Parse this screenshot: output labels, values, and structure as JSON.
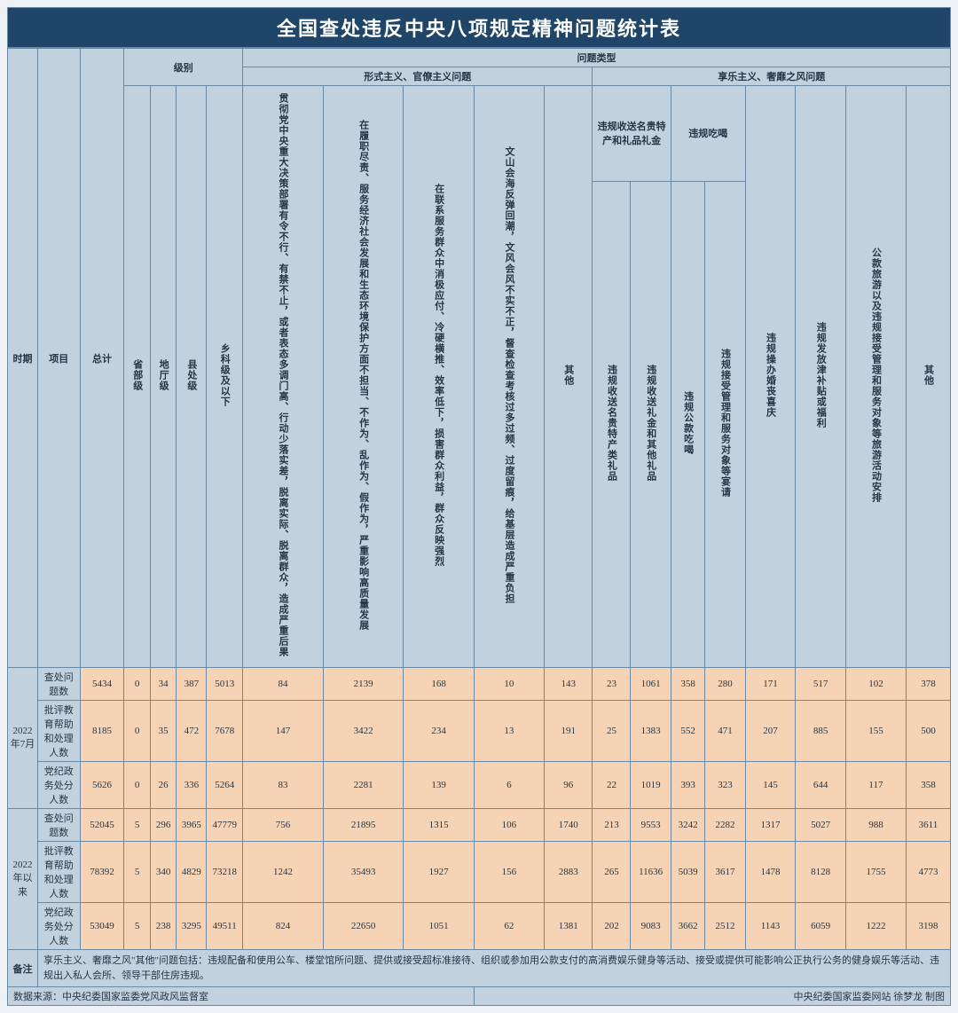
{
  "title": "全国查处违反中央八项规定精神问题统计表",
  "header": {
    "period": "时期",
    "item": "项目",
    "total": "总计",
    "level_group": "级别",
    "levels": [
      "省部级",
      "地厅级",
      "县处级",
      "乡科级及以下"
    ],
    "issue_group": "问题类型",
    "formalism_group": "形式主义、官僚主义问题",
    "hedonism_group": "享乐主义、奢靡之风问题",
    "formalism_cols": [
      "贯彻党中央重大决策部署有令不行、有禁不止，或者表态多调门高、行动少落实差，脱离实际、脱离群众，造成严重后果",
      "在履职尽责、服务经济社会发展和生态环境保护方面不担当、不作为、乱作为、假作为，严重影响高质量发展",
      "在联系服务群众中消极应付、冷硬横推、效率低下，损害群众利益，群众反映强烈",
      "文山会海反弹回潮，文风会风不实不正，督查检查考核过多过频、过度留痕，给基层造成严重负担",
      "其他"
    ],
    "hedonism_col_receive_group": "违规收送名贵特产和礼品礼金",
    "hedonism_col_receive_sub": [
      "违规收送名贵特产类礼品",
      "违规收送礼金和其他礼品"
    ],
    "hedonism_col_eat_group": "违规吃喝",
    "hedonism_col_eat_sub": [
      "违规公款吃喝",
      "违规接受管理和服务对象等宴请"
    ],
    "hedonism_cols_rest": [
      "违规操办婚丧喜庆",
      "违规发放津补贴或福利",
      "公款旅游以及违规接受管理和服务对象等旅游活动安排",
      "其他"
    ]
  },
  "periods": [
    {
      "label": "2022年7月",
      "rows": [
        {
          "item": "查处问题数",
          "total": "5434",
          "levels": [
            "0",
            "34",
            "387",
            "5013"
          ],
          "cols": [
            "84",
            "2139",
            "168",
            "10",
            "143",
            "23",
            "1061",
            "358",
            "280",
            "171",
            "517",
            "102",
            "378"
          ]
        },
        {
          "item": "批评教育帮助和处理人数",
          "total": "8185",
          "levels": [
            "0",
            "35",
            "472",
            "7678"
          ],
          "cols": [
            "147",
            "3422",
            "234",
            "13",
            "191",
            "25",
            "1383",
            "552",
            "471",
            "207",
            "885",
            "155",
            "500"
          ]
        },
        {
          "item": "党纪政务处分人数",
          "total": "5626",
          "levels": [
            "0",
            "26",
            "336",
            "5264"
          ],
          "cols": [
            "83",
            "2281",
            "139",
            "6",
            "96",
            "22",
            "1019",
            "393",
            "323",
            "145",
            "644",
            "117",
            "358"
          ]
        }
      ]
    },
    {
      "label": "2022年以来",
      "rows": [
        {
          "item": "查处问题数",
          "total": "52045",
          "levels": [
            "5",
            "296",
            "3965",
            "47779"
          ],
          "cols": [
            "756",
            "21895",
            "1315",
            "106",
            "1740",
            "213",
            "9553",
            "3242",
            "2282",
            "1317",
            "5027",
            "988",
            "3611"
          ]
        },
        {
          "item": "批评教育帮助和处理人数",
          "total": "78392",
          "levels": [
            "5",
            "340",
            "4829",
            "73218"
          ],
          "cols": [
            "1242",
            "35493",
            "1927",
            "156",
            "2883",
            "265",
            "11636",
            "5039",
            "3617",
            "1478",
            "8128",
            "1755",
            "4773"
          ]
        },
        {
          "item": "党纪政务处分人数",
          "total": "53049",
          "levels": [
            "5",
            "238",
            "3295",
            "49511"
          ],
          "cols": [
            "824",
            "22650",
            "1051",
            "62",
            "1381",
            "202",
            "9083",
            "3662",
            "2512",
            "1143",
            "6059",
            "1222",
            "3198"
          ]
        }
      ]
    }
  ],
  "remark_label": "备注",
  "remark_text": "享乐主义、奢靡之风\"其他\"问题包括：违规配备和使用公车、楼堂馆所问题、提供或接受超标准接待、组织或参加用公款支付的高消费娱乐健身等活动、接受或提供可能影响公正执行公务的健身娱乐等活动、违规出入私人会所、领导干部住房违规。",
  "footer_left": "数据来源：中央纪委国家监委党风政风监督室",
  "footer_right": "中央纪委国家监委网站 徐梦龙 制图"
}
